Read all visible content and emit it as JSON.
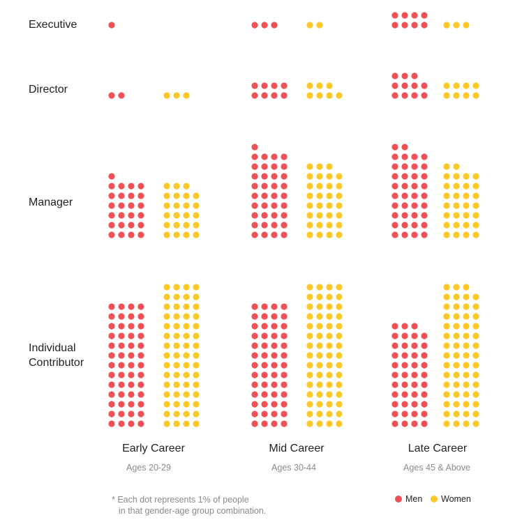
{
  "chart_data": {
    "type": "dot-matrix",
    "unit_note_line1": "* Each dot represents 1% of people",
    "unit_note_line2": "in that gender-age group combination.",
    "colors": {
      "men": "#ef5156",
      "women": "#fcc828"
    },
    "legend": [
      {
        "key": "men",
        "label": "Men"
      },
      {
        "key": "women",
        "label": "Women"
      }
    ],
    "rows": [
      {
        "key": "executive",
        "label_lines": [
          "Executive"
        ]
      },
      {
        "key": "director",
        "label_lines": [
          "Director"
        ]
      },
      {
        "key": "manager",
        "label_lines": [
          "Manager"
        ]
      },
      {
        "key": "ic",
        "label_lines": [
          "Individual",
          "Contributor"
        ]
      }
    ],
    "groups": [
      {
        "key": "early",
        "title": "Early Career",
        "subtitle": "Ages 20-29",
        "values": {
          "executive": {
            "men": 1,
            "women": 0
          },
          "director": {
            "men": 2,
            "women": 3
          },
          "manager": {
            "men": 25,
            "women": 23
          },
          "ic": {
            "men": 52,
            "women": 60
          }
        }
      },
      {
        "key": "mid",
        "title": "Mid Career",
        "subtitle": "Ages 30-44",
        "values": {
          "executive": {
            "men": 3,
            "women": 2
          },
          "director": {
            "men": 8,
            "women": 7
          },
          "manager": {
            "men": 37,
            "women": 31
          },
          "ic": {
            "men": 52,
            "women": 60
          }
        }
      },
      {
        "key": "late",
        "title": "Late Career",
        "subtitle": "Ages 45 & Above",
        "values": {
          "executive": {
            "men": 8,
            "women": 3
          },
          "director": {
            "men": 11,
            "women": 8
          },
          "manager": {
            "men": 38,
            "women": 30
          },
          "ic": {
            "men": 43,
            "women": 59
          }
        }
      }
    ]
  }
}
